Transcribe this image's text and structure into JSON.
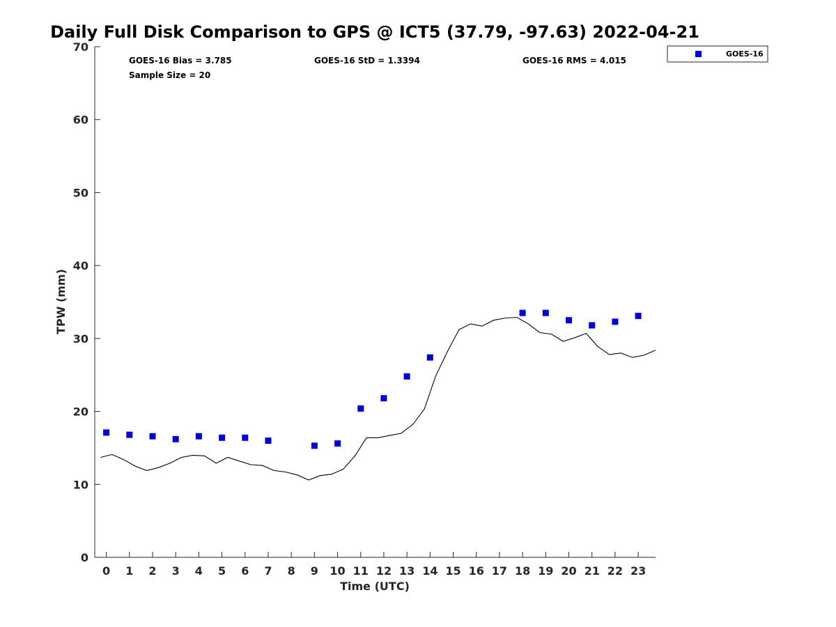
{
  "chart_data": {
    "type": "scatter",
    "title": "Daily Full Disk Comparison to GPS @ ICT5 (37.79, -97.63) 2022-04-21",
    "xlabel": "Time (UTC)",
    "ylabel": "TPW (mm)",
    "xlim": [
      -0.5,
      23.75
    ],
    "ylim": [
      0,
      70
    ],
    "x_ticks": [
      0,
      1,
      2,
      3,
      4,
      5,
      6,
      7,
      8,
      9,
      10,
      11,
      12,
      13,
      14,
      15,
      16,
      17,
      18,
      19,
      20,
      21,
      22,
      23
    ],
    "y_ticks": [
      0,
      10,
      20,
      30,
      40,
      50,
      60,
      70
    ],
    "grid": false,
    "legend_position": "top-right, outside plot",
    "stats": {
      "bias": "GOES-16 Bias = 3.785",
      "std": "GOES-16 StD = 1.3394",
      "rms": "GOES-16 RMS = 4.015",
      "sample_size": "Sample Size = 20"
    },
    "series": [
      {
        "name": "GOES-16",
        "kind": "markers",
        "marker": "square",
        "color": "#0000dd",
        "x": [
          0,
          1,
          2,
          3,
          4,
          5,
          6,
          7,
          9,
          10,
          11,
          12,
          13,
          14,
          18,
          19,
          20,
          21,
          22,
          23
        ],
        "y": [
          17.1,
          16.8,
          16.6,
          16.2,
          16.6,
          16.4,
          16.4,
          16.0,
          15.3,
          15.6,
          20.4,
          21.8,
          24.8,
          27.4,
          33.5,
          33.5,
          32.5,
          31.8,
          32.3,
          33.1
        ]
      },
      {
        "kind": "line",
        "color": "#000000",
        "x": [
          -0.25,
          0.25,
          0.75,
          1.25,
          1.75,
          2.25,
          2.75,
          3.25,
          3.75,
          4.25,
          4.75,
          5.25,
          5.75,
          6.25,
          6.75,
          7.25,
          7.75,
          8.25,
          8.75,
          9.25,
          9.75,
          10.25,
          10.75,
          11.25,
          11.75,
          12.25,
          12.75,
          13.25,
          13.75,
          14.25,
          14.75,
          15.25,
          15.75,
          16.25,
          16.75,
          17.25,
          17.75,
          18.25,
          18.75,
          19.25,
          19.75,
          20.25,
          20.75,
          21.25,
          21.75,
          22.25,
          22.75,
          23.25,
          23.75
        ],
        "y": [
          13.7,
          14.1,
          13.4,
          12.5,
          11.9,
          12.3,
          12.9,
          13.7,
          14.0,
          13.9,
          12.9,
          13.7,
          13.2,
          12.7,
          12.6,
          11.9,
          11.7,
          11.3,
          10.6,
          11.2,
          11.4,
          12.1,
          13.9,
          16.4,
          16.4,
          16.7,
          17.0,
          18.2,
          20.3,
          24.9,
          28.2,
          31.2,
          32.0,
          31.7,
          32.5,
          32.8,
          32.9,
          32.0,
          30.8,
          30.6,
          29.6,
          30.1,
          30.7,
          28.9,
          27.8,
          28.0,
          27.4,
          27.7,
          28.4
        ]
      }
    ]
  }
}
